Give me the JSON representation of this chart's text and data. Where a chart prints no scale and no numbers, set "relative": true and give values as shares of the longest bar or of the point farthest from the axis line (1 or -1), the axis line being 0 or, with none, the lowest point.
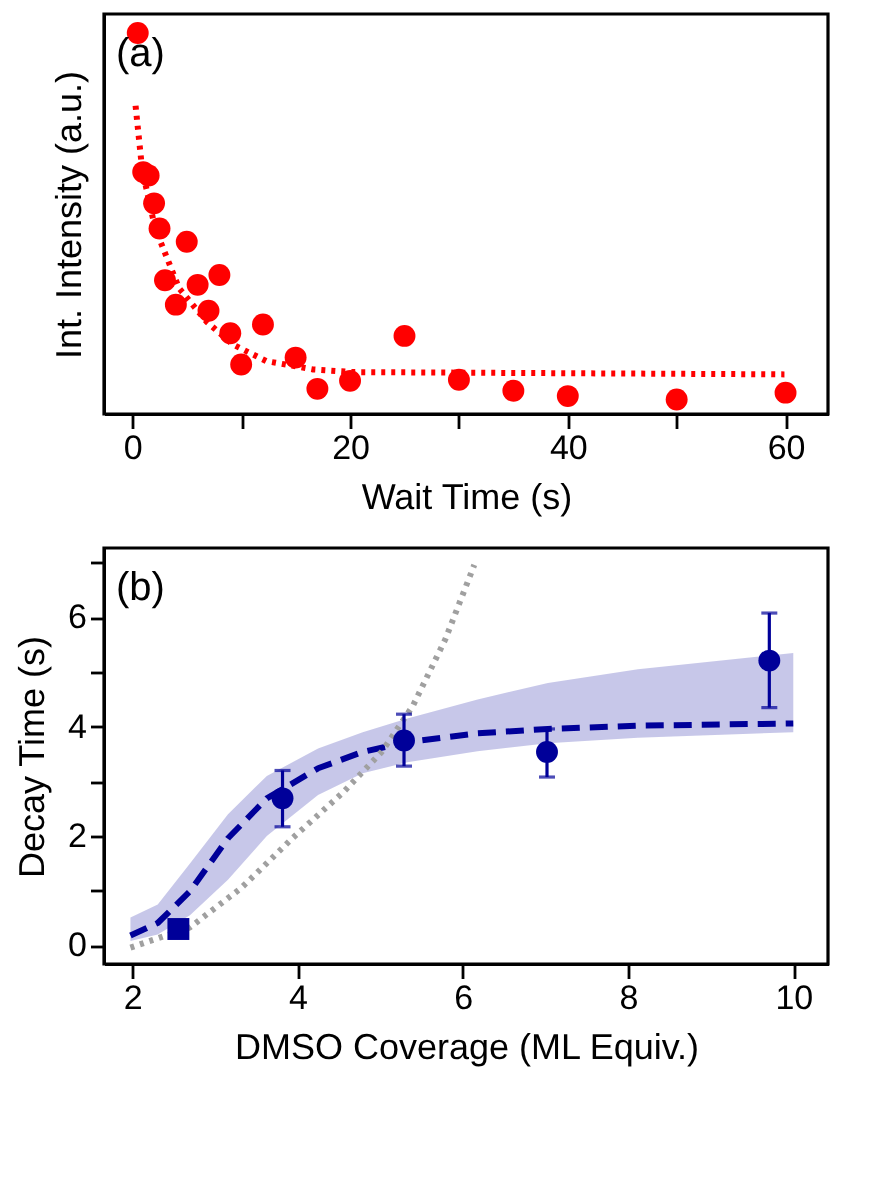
{
  "chart_data": [
    {
      "type": "scatter",
      "relative": true,
      "tick_labels": "x",
      "annotations": [
        "(a)"
      ],
      "xlabel": "Wait Time (s)",
      "ylabel": "Int. Intensity (a.u.)",
      "xlim": [
        -2.6,
        63.9
      ],
      "xticks": [
        0,
        20,
        40,
        60,
        {
          "value": 10,
          "label": null
        },
        {
          "value": 30,
          "label": null
        },
        {
          "value": 50,
          "label": null
        }
      ],
      "series": [
        {
          "type": "line",
          "color": "#ff0000",
          "line_style": "dotted",
          "marker": "none",
          "x": [
            0.3,
            0.9,
            2.1,
            4.3,
            6.8,
            9.2,
            12.3,
            16.6,
            20.3,
            59.9
          ],
          "values": [
            0.809,
            0.643,
            0.487,
            0.33,
            0.243,
            0.183,
            0.139,
            0.117,
            0.11,
            0.104
          ]
        },
        {
          "color": "#ff0000",
          "marker": "circle",
          "x": [
            0.5,
            1,
            1.5,
            2,
            2.5,
            3,
            4,
            5,
            6,
            7,
            8,
            9,
            10,
            12,
            15,
            17,
            20,
            25,
            30,
            35,
            40,
            50,
            60
          ],
          "values": [
            1,
            0.635,
            0.626,
            0.553,
            0.487,
            0.351,
            0.287,
            0.452,
            0.339,
            0.271,
            0.365,
            0.212,
            0.13,
            0.235,
            0.148,
            0.066,
            0.087,
            0.205,
            0.09,
            0.061,
            0.047,
            0.038,
            0.056
          ]
        }
      ]
    },
    {
      "type": "scatter",
      "annotations": [
        "(b)"
      ],
      "xlabel": "DMSO Coverage (ML Equiv.)",
      "ylabel": "Decay Time (s)",
      "xlim": [
        1.66,
        10.42
      ],
      "xticks": [
        2,
        4,
        6,
        8,
        10
      ],
      "ylim": [
        -0.34,
        7.27
      ],
      "yticks": [
        0,
        2,
        4,
        6,
        {
          "value": 1,
          "label": null
        },
        {
          "value": 3,
          "label": null
        },
        {
          "value": 5,
          "label": null
        },
        {
          "value": 7,
          "label": null
        }
      ],
      "series": [
        {
          "type": "line",
          "color": "#000099",
          "line_style": "dashed",
          "marker": "none",
          "x": [
            1.98,
            2.31,
            2.7,
            3.16,
            3.63,
            4.25,
            4.79,
            5.33,
            6.18,
            7.03,
            8.12,
            10.0
          ],
          "values": [
            0.18,
            0.41,
            0.99,
            1.96,
            2.69,
            3.24,
            3.54,
            3.72,
            3.88,
            3.96,
            4.02,
            4.06
          ],
          "lower": [
            0.08,
            0.2,
            0.55,
            1.2,
            2.0,
            2.75,
            3.15,
            3.35,
            3.55,
            3.7,
            3.8,
            3.9
          ],
          "upper": [
            0.51,
            0.75,
            1.5,
            2.4,
            3.1,
            3.6,
            3.9,
            4.15,
            4.5,
            4.8,
            5.05,
            5.35
          ]
        },
        {
          "type": "line",
          "color": "#a0a0a0",
          "line_style": "dotted",
          "marker": "none",
          "x": [
            1.98,
            2.7,
            3.32,
            3.94,
            4.56,
            5.02,
            5.4,
            5.79,
            6.14
          ],
          "values": [
            -0.04,
            0.33,
            1.05,
            1.96,
            2.81,
            3.54,
            4.39,
            5.6,
            6.96
          ]
        },
        {
          "color": "#000099",
          "marker": "circle",
          "x": [
            3.82,
            5.29,
            7.02,
            9.71
          ],
          "values": [
            2.69,
            3.75,
            3.54,
            5.21
          ],
          "errors": [
            [
              2.17,
              3.2
            ],
            [
              3.28,
              4.23
            ],
            [
              3.08,
              3.96
            ],
            [
              4.35,
              6.08
            ]
          ]
        },
        {
          "color": "#000099",
          "marker": "square",
          "x": [
            2.56
          ],
          "values": [
            0.3
          ]
        }
      ]
    }
  ]
}
